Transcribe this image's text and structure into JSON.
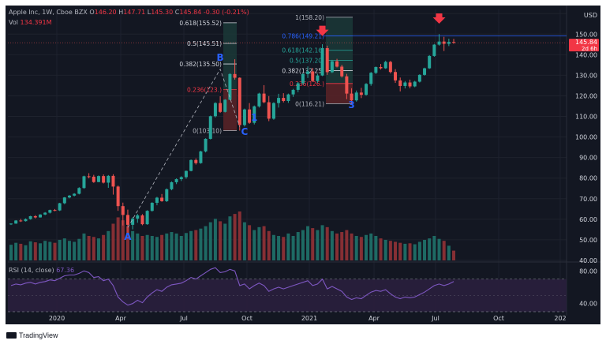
{
  "header": {
    "symbol": "Apple Inc, 1W, Cboe BZX",
    "o_label": "O",
    "o": "146.20",
    "h_label": "H",
    "h": "147.71",
    "l_label": "L",
    "l": "145.30",
    "c_label": "C",
    "c": "145.84",
    "change": "-0.30 (-0.21%)"
  },
  "volume": {
    "label": "Vol",
    "value": "134.391M"
  },
  "rsi": {
    "label": "RSI (14, close)",
    "value": "67.36"
  },
  "brand": {
    "name": "TradingView"
  },
  "price_axis": {
    "currency": "USD",
    "last_price": "145.84",
    "countdown": "2d 6h"
  },
  "colors": {
    "up": "#26a69a",
    "down": "#ef5350",
    "rsi": "#7e57c2",
    "fib_level": "#2962ff",
    "bg": "#131722"
  },
  "chart_data": {
    "type": "candlestick",
    "x_ticks": [
      "2020",
      "Apr",
      "Jul",
      "Oct",
      "2021",
      "Apr",
      "Jul",
      "Oct",
      "202"
    ],
    "y_ticks": [
      40,
      50,
      60,
      70,
      80,
      90,
      100,
      110,
      120,
      130,
      140,
      150,
      160
    ],
    "ylim": [
      40,
      162
    ],
    "rsi_ticks": [
      40,
      80
    ],
    "rsi_ylim": [
      30,
      90
    ],
    "rsi_bands": [
      30,
      70
    ],
    "candles": [
      [
        57.6,
        58.0,
        57.2,
        57.9
      ],
      [
        57.9,
        59.6,
        57.8,
        59.4
      ],
      [
        59.4,
        60.2,
        58.7,
        59.1
      ],
      [
        59.1,
        60.4,
        58.9,
        60.1
      ],
      [
        60.1,
        61.7,
        59.8,
        61.5
      ],
      [
        61.5,
        62.0,
        60.4,
        60.9
      ],
      [
        60.9,
        62.5,
        60.8,
        62.3
      ],
      [
        62.3,
        63.5,
        62.0,
        63.2
      ],
      [
        63.2,
        64.7,
        62.8,
        64.5
      ],
      [
        64.5,
        65.0,
        63.9,
        64.3
      ],
      [
        64.3,
        68.0,
        64.0,
        67.8
      ],
      [
        67.8,
        70.8,
        67.3,
        70.6
      ],
      [
        70.6,
        71.8,
        70.2,
        71.5
      ],
      [
        71.5,
        72.7,
        71.1,
        72.4
      ],
      [
        72.4,
        75.6,
        72.1,
        75.2
      ],
      [
        75.2,
        81.2,
        74.8,
        80.9
      ],
      [
        80.9,
        82.4,
        79.9,
        80.7
      ],
      [
        80.7,
        81.6,
        77.7,
        78.1
      ],
      [
        78.1,
        81.3,
        78.0,
        81.0
      ],
      [
        81.0,
        81.8,
        77.4,
        77.8
      ],
      [
        77.8,
        81.5,
        75.3,
        81.1
      ],
      [
        81.1,
        81.9,
        72.0,
        75.9
      ],
      [
        75.9,
        76.4,
        64.1,
        66.4
      ],
      [
        66.4,
        68.1,
        57.0,
        62.1
      ],
      [
        62.1,
        64.7,
        53.2,
        57.3
      ],
      [
        57.3,
        61.0,
        55.1,
        60.3
      ],
      [
        60.3,
        62.6,
        58.3,
        61.9
      ],
      [
        61.9,
        62.5,
        57.1,
        57.6
      ],
      [
        57.6,
        64.4,
        57.3,
        64.1
      ],
      [
        64.1,
        68.3,
        63.7,
        68.0
      ],
      [
        68.0,
        70.9,
        66.8,
        70.5
      ],
      [
        70.5,
        72.3,
        68.5,
        68.8
      ],
      [
        68.8,
        75.0,
        68.4,
        74.6
      ],
      [
        74.6,
        78.4,
        74.1,
        78.0
      ],
      [
        78.0,
        79.9,
        77.1,
        79.5
      ],
      [
        79.5,
        80.9,
        78.6,
        80.5
      ],
      [
        80.5,
        83.7,
        79.7,
        83.5
      ],
      [
        83.5,
        89.1,
        83.3,
        88.8
      ],
      [
        88.8,
        89.6,
        86.6,
        87.3
      ],
      [
        87.3,
        93.3,
        87.0,
        93.0
      ],
      [
        93.0,
        99.4,
        92.5,
        99.1
      ],
      [
        99.1,
        110.4,
        98.8,
        110.1
      ],
      [
        110.1,
        116.9,
        109.5,
        116.5
      ],
      [
        116.5,
        119.8,
        111.7,
        112.2
      ],
      [
        112.2,
        118.4,
        111.9,
        118.1
      ],
      [
        118.1,
        131.0,
        117.9,
        130.6
      ],
      [
        130.6,
        137.8,
        127.9,
        128.8
      ],
      [
        128.8,
        129.0,
        103.1,
        105.8
      ],
      [
        105.8,
        113.8,
        105.1,
        113.4
      ],
      [
        113.4,
        116.5,
        106.4,
        106.9
      ],
      [
        106.9,
        115.3,
        106.1,
        114.9
      ],
      [
        114.9,
        121.5,
        114.3,
        121.1
      ],
      [
        121.1,
        125.2,
        116.4,
        116.9
      ],
      [
        116.9,
        119.9,
        107.7,
        108.9
      ],
      [
        108.9,
        116.9,
        108.4,
        116.5
      ],
      [
        116.5,
        121.0,
        114.3,
        119.0
      ],
      [
        119.0,
        121.3,
        116.8,
        117.5
      ],
      [
        117.5,
        121.1,
        116.6,
        120.7
      ],
      [
        120.7,
        123.4,
        119.5,
        122.9
      ],
      [
        122.9,
        126.7,
        121.8,
        126.1
      ],
      [
        126.1,
        131.0,
        125.3,
        130.6
      ],
      [
        130.6,
        134.3,
        128.7,
        131.9
      ],
      [
        131.9,
        133.6,
        126.8,
        127.2
      ],
      [
        127.2,
        130.7,
        126.3,
        129.9
      ],
      [
        129.9,
        145.1,
        129.6,
        143.2
      ],
      [
        143.2,
        144.4,
        130.2,
        131.5
      ],
      [
        131.5,
        137.5,
        131.1,
        136.8
      ],
      [
        136.8,
        138.0,
        133.8,
        134.2
      ],
      [
        134.2,
        135.1,
        128.9,
        129.5
      ],
      [
        129.5,
        130.7,
        118.4,
        121.1
      ],
      [
        121.1,
        123.7,
        116.2,
        117.8
      ],
      [
        117.8,
        122.6,
        117.2,
        121.6
      ],
      [
        121.6,
        123.9,
        118.9,
        120.5
      ],
      [
        120.5,
        126.2,
        120.1,
        125.8
      ],
      [
        125.8,
        131.6,
        124.9,
        131.2
      ],
      [
        131.2,
        134.3,
        130.6,
        134.0
      ],
      [
        134.0,
        135.5,
        132.8,
        133.4
      ],
      [
        133.4,
        137.1,
        133.1,
        136.5
      ],
      [
        136.5,
        137.0,
        130.9,
        131.6
      ],
      [
        131.6,
        133.0,
        126.3,
        127.5
      ],
      [
        127.5,
        128.9,
        122.2,
        124.8
      ],
      [
        124.8,
        127.2,
        123.6,
        126.5
      ],
      [
        126.5,
        127.9,
        123.7,
        124.6
      ],
      [
        124.6,
        127.3,
        124.2,
        126.9
      ],
      [
        126.9,
        130.5,
        126.5,
        130.2
      ],
      [
        130.2,
        133.7,
        129.8,
        133.4
      ],
      [
        133.4,
        139.8,
        133.1,
        139.4
      ],
      [
        139.4,
        145.2,
        139.0,
        144.9
      ],
      [
        144.9,
        150.0,
        144.4,
        146.4
      ],
      [
        146.4,
        148.7,
        141.8,
        145.3
      ],
      [
        145.3,
        147.8,
        144.2,
        146.2
      ],
      [
        146.2,
        147.7,
        145.3,
        145.84
      ]
    ],
    "volume_pct": [
      0.32,
      0.36,
      0.34,
      0.31,
      0.39,
      0.37,
      0.35,
      0.4,
      0.38,
      0.36,
      0.42,
      0.45,
      0.4,
      0.38,
      0.44,
      0.55,
      0.5,
      0.48,
      0.45,
      0.52,
      0.6,
      0.75,
      0.88,
      0.82,
      0.7,
      0.6,
      0.55,
      0.5,
      0.52,
      0.5,
      0.48,
      0.52,
      0.55,
      0.58,
      0.55,
      0.5,
      0.56,
      0.6,
      0.62,
      0.65,
      0.7,
      0.78,
      0.85,
      0.8,
      0.75,
      0.9,
      0.95,
      1.0,
      0.78,
      0.72,
      0.62,
      0.68,
      0.7,
      0.6,
      0.52,
      0.5,
      0.48,
      0.55,
      0.5,
      0.58,
      0.62,
      0.7,
      0.66,
      0.62,
      0.72,
      0.68,
      0.6,
      0.55,
      0.58,
      0.62,
      0.55,
      0.5,
      0.48,
      0.52,
      0.55,
      0.5,
      0.45,
      0.42,
      0.4,
      0.38,
      0.36,
      0.34,
      0.35,
      0.33,
      0.38,
      0.42,
      0.45,
      0.5,
      0.44,
      0.4,
      0.3,
      0.2
    ],
    "rsi": [
      62,
      64,
      63,
      65,
      66,
      64,
      66,
      67,
      69,
      68,
      71,
      74,
      75,
      75,
      77,
      80,
      78,
      72,
      73,
      68,
      70,
      62,
      48,
      42,
      38,
      40,
      44,
      41,
      48,
      53,
      57,
      55,
      60,
      63,
      64,
      65,
      68,
      72,
      70,
      74,
      78,
      82,
      84,
      78,
      79,
      82,
      80,
      62,
      64,
      58,
      62,
      65,
      62,
      55,
      58,
      60,
      58,
      60,
      62,
      64,
      66,
      68,
      62,
      64,
      70,
      58,
      61,
      58,
      55,
      48,
      45,
      47,
      46,
      50,
      54,
      56,
      55,
      57,
      52,
      48,
      46,
      48,
      47,
      48,
      51,
      54,
      58,
      62,
      64,
      62,
      64,
      67
    ],
    "fib_retracements": [
      {
        "levels": [
          {
            "ratio": "0.236",
            "price": "123.",
            "value": 123.0,
            "color": "#f23645"
          },
          {
            "ratio": "0.382",
            "price": "135.50",
            "value": 135.5,
            "color": "#d1d4dc"
          },
          {
            "ratio": "0.5",
            "price": "145.51",
            "value": 145.51,
            "color": "#d1d4dc"
          },
          {
            "ratio": "0.618",
            "price": "155.52",
            "value": 155.52,
            "color": "#d1d4dc"
          },
          {
            "ratio": "0",
            "price": "103.10",
            "value": 103.1,
            "color": "#b2b5be"
          }
        ]
      },
      {
        "levels": [
          {
            "ratio": "1",
            "price": "158.20",
            "value": 158.2,
            "color": "#b2b5be"
          },
          {
            "ratio": "0.786",
            "price": "149.21",
            "value": 149.21,
            "color": "#2962ff"
          },
          {
            "ratio": "0.618",
            "price": "142.16",
            "value": 142.16,
            "color": "#26a69a"
          },
          {
            "ratio": "0.5",
            "price": "137.20",
            "value": 137.2,
            "color": "#26a69a"
          },
          {
            "ratio": "0.382",
            "price": "132.25",
            "value": 132.25,
            "color": "#d1d4dc"
          },
          {
            "ratio": "0.236",
            "price": "126.",
            "value": 126.0,
            "color": "#f23645"
          },
          {
            "ratio": "0",
            "price": "116.21",
            "value": 116.21,
            "color": "#b2b5be"
          }
        ]
      }
    ],
    "horizontal_levels": [
      149.21
    ],
    "wave_labels": [
      "A",
      "B",
      "C",
      "1",
      "3"
    ],
    "arrow_markers": 2
  }
}
